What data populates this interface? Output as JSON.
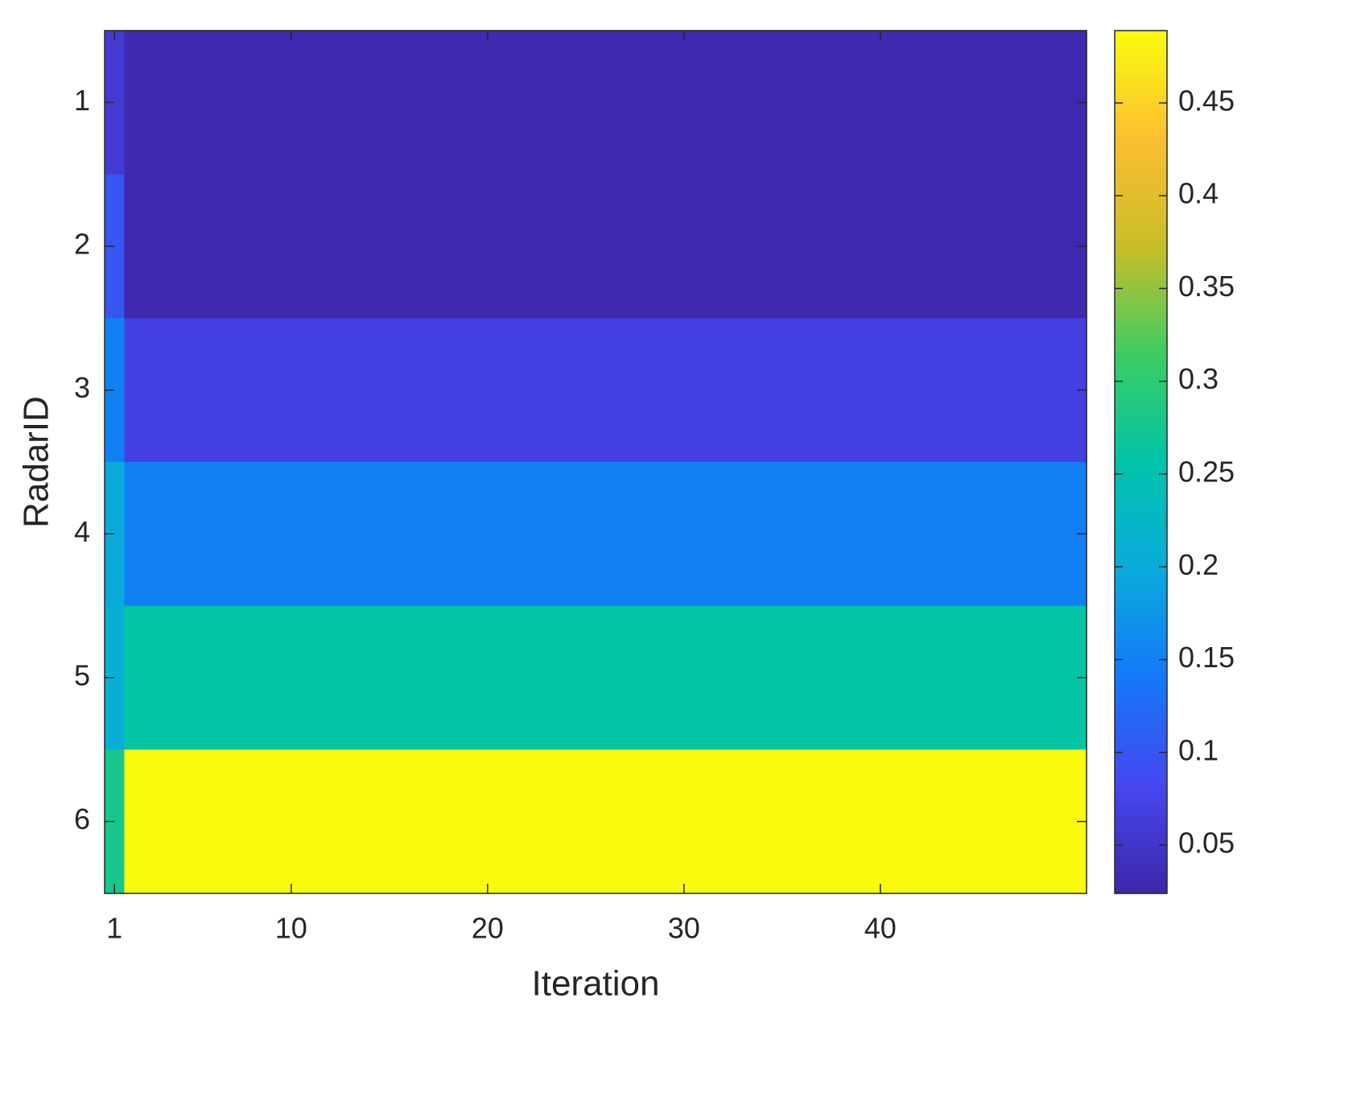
{
  "chart_data": {
    "type": "heatmap",
    "xlabel": "Iteration",
    "ylabel": "RadarID",
    "x": [
      1,
      2,
      3,
      4,
      5,
      6,
      7,
      8,
      9,
      10,
      11,
      12,
      13,
      14,
      15,
      16,
      17,
      18,
      19,
      20,
      21,
      22,
      23,
      24,
      25,
      26,
      27,
      28,
      29,
      30,
      31,
      32,
      33,
      34,
      35,
      36,
      37,
      38,
      39,
      40,
      41,
      42,
      43,
      44,
      45,
      46,
      47,
      48,
      49,
      50
    ],
    "y": [
      1,
      2,
      3,
      4,
      5,
      6
    ],
    "z": [
      [
        0.06,
        0.03,
        0.03,
        0.03,
        0.03,
        0.03,
        0.03,
        0.03,
        0.03,
        0.03,
        0.03,
        0.03,
        0.03,
        0.03,
        0.03,
        0.03,
        0.03,
        0.03,
        0.03,
        0.03,
        0.03,
        0.03,
        0.03,
        0.03,
        0.03,
        0.03,
        0.03,
        0.03,
        0.03,
        0.03,
        0.03,
        0.03,
        0.03,
        0.03,
        0.03,
        0.03,
        0.03,
        0.03,
        0.03,
        0.03,
        0.03,
        0.03,
        0.03,
        0.03,
        0.03,
        0.03,
        0.03,
        0.03,
        0.03,
        0.03
      ],
      [
        0.1,
        0.03,
        0.03,
        0.03,
        0.03,
        0.03,
        0.03,
        0.03,
        0.03,
        0.03,
        0.03,
        0.03,
        0.03,
        0.03,
        0.03,
        0.03,
        0.03,
        0.03,
        0.03,
        0.03,
        0.03,
        0.03,
        0.03,
        0.03,
        0.03,
        0.03,
        0.03,
        0.03,
        0.03,
        0.03,
        0.03,
        0.03,
        0.03,
        0.03,
        0.03,
        0.03,
        0.03,
        0.03,
        0.03,
        0.03,
        0.03,
        0.03,
        0.03,
        0.03,
        0.03,
        0.03,
        0.03,
        0.03,
        0.03,
        0.03
      ],
      [
        0.15,
        0.07,
        0.07,
        0.07,
        0.07,
        0.07,
        0.07,
        0.07,
        0.07,
        0.07,
        0.07,
        0.07,
        0.07,
        0.07,
        0.07,
        0.07,
        0.07,
        0.07,
        0.07,
        0.07,
        0.07,
        0.07,
        0.07,
        0.07,
        0.07,
        0.07,
        0.07,
        0.07,
        0.07,
        0.07,
        0.07,
        0.07,
        0.07,
        0.07,
        0.07,
        0.07,
        0.07,
        0.07,
        0.07,
        0.07,
        0.07,
        0.07,
        0.07,
        0.07,
        0.07,
        0.07,
        0.07,
        0.07,
        0.07,
        0.07
      ],
      [
        0.2,
        0.15,
        0.15,
        0.15,
        0.15,
        0.15,
        0.15,
        0.15,
        0.15,
        0.15,
        0.15,
        0.15,
        0.15,
        0.15,
        0.15,
        0.15,
        0.15,
        0.15,
        0.15,
        0.15,
        0.15,
        0.15,
        0.15,
        0.15,
        0.15,
        0.15,
        0.15,
        0.15,
        0.15,
        0.15,
        0.15,
        0.15,
        0.15,
        0.15,
        0.15,
        0.15,
        0.15,
        0.15,
        0.15,
        0.15,
        0.15,
        0.15,
        0.15,
        0.15,
        0.15,
        0.15,
        0.15,
        0.15,
        0.15,
        0.15
      ],
      [
        0.21,
        0.26,
        0.26,
        0.26,
        0.26,
        0.26,
        0.26,
        0.26,
        0.26,
        0.26,
        0.26,
        0.26,
        0.26,
        0.26,
        0.26,
        0.26,
        0.26,
        0.26,
        0.26,
        0.26,
        0.26,
        0.26,
        0.26,
        0.26,
        0.26,
        0.26,
        0.26,
        0.26,
        0.26,
        0.26,
        0.26,
        0.26,
        0.26,
        0.26,
        0.26,
        0.26,
        0.26,
        0.26,
        0.26,
        0.26,
        0.26,
        0.26,
        0.26,
        0.26,
        0.26,
        0.26,
        0.26,
        0.26,
        0.26,
        0.26
      ],
      [
        0.28,
        0.489,
        0.489,
        0.489,
        0.489,
        0.489,
        0.489,
        0.489,
        0.489,
        0.489,
        0.489,
        0.489,
        0.489,
        0.489,
        0.489,
        0.489,
        0.489,
        0.489,
        0.489,
        0.489,
        0.489,
        0.489,
        0.489,
        0.489,
        0.489,
        0.489,
        0.489,
        0.489,
        0.489,
        0.489,
        0.489,
        0.489,
        0.489,
        0.489,
        0.489,
        0.489,
        0.489,
        0.489,
        0.489,
        0.489,
        0.489,
        0.489,
        0.489,
        0.489,
        0.489,
        0.489,
        0.489,
        0.489,
        0.489,
        0.489
      ]
    ],
    "xlim": [
      0.5,
      50.5
    ],
    "xticks": [
      1,
      10,
      20,
      30,
      40
    ],
    "ylim": [
      0.5,
      6.5
    ],
    "yticks": [
      1,
      2,
      3,
      4,
      5,
      6
    ],
    "y_reversed": true,
    "clim": [
      0.024,
      0.489
    ],
    "cticks": [
      0.05,
      0.1,
      0.15,
      0.2,
      0.25,
      0.3,
      0.35,
      0.4,
      0.45
    ],
    "colormap": "parula"
  }
}
